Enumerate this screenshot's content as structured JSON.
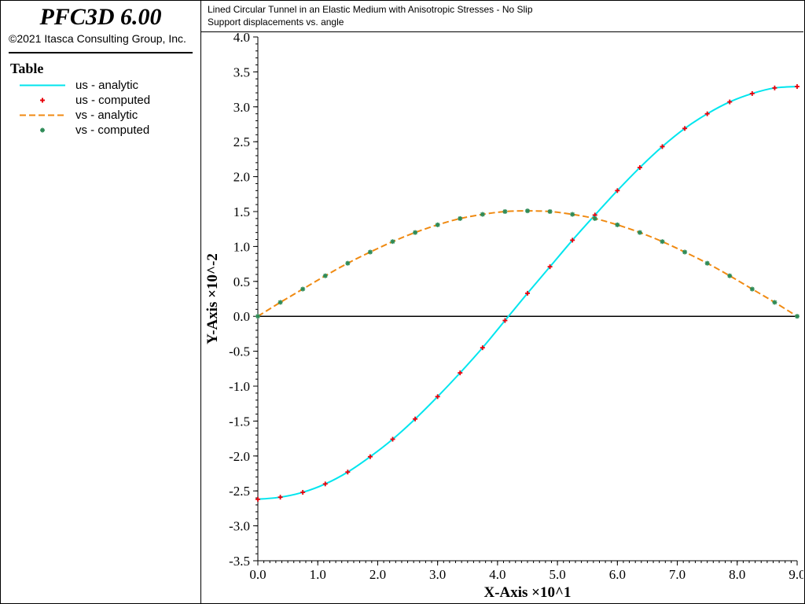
{
  "app": {
    "title": "PFC3D 6.00",
    "copyright": "©2021 Itasca Consulting Group, Inc."
  },
  "legend": {
    "title": "Table",
    "items": [
      {
        "label": "us - analytic",
        "style": "line",
        "color": "#00e5ee"
      },
      {
        "label": "us - computed",
        "style": "plus",
        "color": "#e8000b"
      },
      {
        "label": "vs - analytic",
        "style": "dashed",
        "color": "#f08a12"
      },
      {
        "label": "vs - computed",
        "style": "star",
        "color": "#2e8b57"
      }
    ]
  },
  "header": {
    "line1": "Lined Circular Tunnel in an Elastic Medium with Anisotropic Stresses - No Slip",
    "line2": "Support displacements vs. angle"
  },
  "chart_data": {
    "type": "line",
    "xlabel": "X-Axis ×10^1",
    "ylabel": "Y-Axis ×10^-2",
    "xlim": [
      0,
      9
    ],
    "ylim": [
      -3.5,
      4.0
    ],
    "xticks": [
      "0.0",
      "1.0",
      "2.0",
      "3.0",
      "4.0",
      "5.0",
      "6.0",
      "7.0",
      "8.0",
      "9.0"
    ],
    "yticks": [
      "-3.5",
      "-3.0",
      "-2.5",
      "-2.0",
      "-1.5",
      "-1.0",
      "-0.5",
      "0.0",
      "0.5",
      "1.0",
      "1.5",
      "2.0",
      "2.5",
      "3.0",
      "3.5",
      "4.0"
    ],
    "grid": false,
    "x": [
      0.0,
      0.375,
      0.75,
      1.125,
      1.5,
      1.875,
      2.25,
      2.625,
      3.0,
      3.375,
      3.75,
      4.125,
      4.5,
      4.875,
      5.25,
      5.625,
      6.0,
      6.375,
      6.75,
      7.125,
      7.5,
      7.875,
      8.25,
      8.625,
      9.0
    ],
    "series": [
      {
        "name": "us - analytic",
        "style": "line",
        "color": "#00e5ee",
        "values": [
          -2.62,
          -2.59,
          -2.52,
          -2.4,
          -2.23,
          -2.01,
          -1.76,
          -1.47,
          -1.15,
          -0.81,
          -0.45,
          -0.06,
          0.33,
          0.71,
          1.09,
          1.45,
          1.8,
          2.13,
          2.43,
          2.69,
          2.9,
          3.07,
          3.19,
          3.27,
          3.29
        ]
      },
      {
        "name": "us - computed",
        "style": "plus",
        "color": "#e8000b",
        "values": [
          -2.62,
          -2.59,
          -2.52,
          -2.4,
          -2.23,
          -2.01,
          -1.76,
          -1.47,
          -1.15,
          -0.81,
          -0.45,
          -0.06,
          0.33,
          0.71,
          1.09,
          1.45,
          1.8,
          2.13,
          2.43,
          2.69,
          2.9,
          3.07,
          3.19,
          3.27,
          3.29
        ]
      },
      {
        "name": "vs - analytic",
        "style": "dashed",
        "color": "#f08a12",
        "values": [
          0.0,
          0.2,
          0.39,
          0.58,
          0.76,
          0.92,
          1.07,
          1.2,
          1.31,
          1.4,
          1.46,
          1.5,
          1.51,
          1.5,
          1.46,
          1.4,
          1.31,
          1.2,
          1.07,
          0.92,
          0.76,
          0.58,
          0.39,
          0.2,
          0.0
        ]
      },
      {
        "name": "vs - computed",
        "style": "star",
        "color": "#2e8b57",
        "values": [
          0.0,
          0.2,
          0.39,
          0.58,
          0.76,
          0.92,
          1.07,
          1.2,
          1.31,
          1.4,
          1.46,
          1.5,
          1.51,
          1.5,
          1.46,
          1.4,
          1.31,
          1.2,
          1.07,
          0.92,
          0.76,
          0.58,
          0.39,
          0.2,
          0.0
        ]
      }
    ]
  }
}
